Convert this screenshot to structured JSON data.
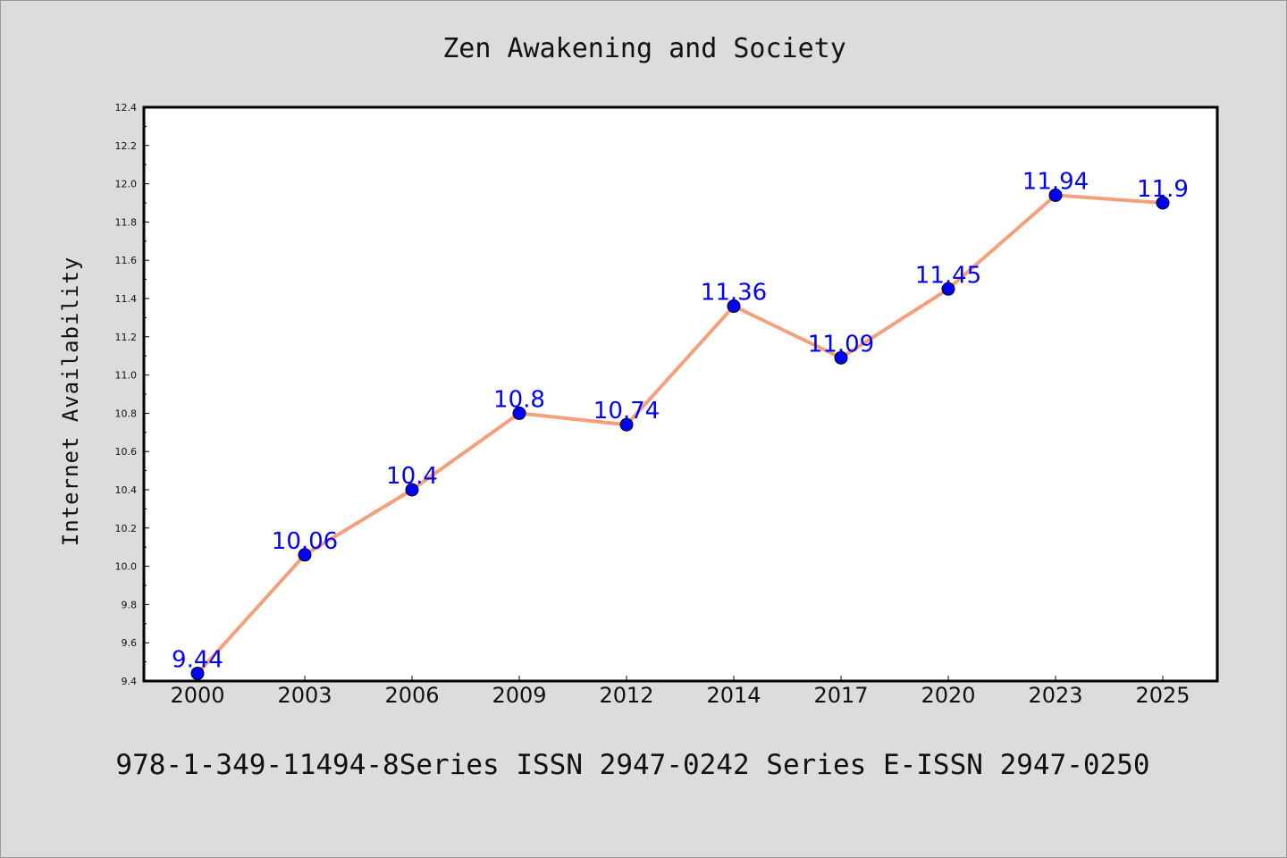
{
  "chart_data": {
    "type": "line",
    "title": "Zen Awakening and Society",
    "xlabel": "",
    "ylabel": "Internet Availability",
    "categories": [
      "2000",
      "2003",
      "2006",
      "2009",
      "2012",
      "2014",
      "2017",
      "2020",
      "2023",
      "2025"
    ],
    "series": [
      {
        "values": [
          9.44,
          10.06,
          10.4,
          10.8,
          10.74,
          11.36,
          11.09,
          11.45,
          11.94,
          11.9
        ],
        "data_labels": [
          "9.44",
          "10.06",
          "10.4",
          "10.8",
          "10.74",
          "11.36",
          "11.09",
          "11.45",
          "11.94",
          "11.9"
        ],
        "line_color": "#f4a07a",
        "marker_color": "#0000ff"
      }
    ],
    "ylim": [
      9.4,
      12.4
    ],
    "yticks": [
      "9.4",
      "9.6",
      "9.8",
      "10.0",
      "10.2",
      "10.4",
      "10.6",
      "10.8",
      "11.0",
      "11.2",
      "11.4",
      "11.6",
      "11.8",
      "12.0",
      "12.2",
      "12.4"
    ],
    "grid": false,
    "legend": "none"
  },
  "footer": {
    "text": "978-1-349-11494-8Series ISSN 2947-0242 Series E-ISSN 2947-0250"
  },
  "colors": {
    "background": "#dcdcdc",
    "plot_background": "#ffffff",
    "line": "#f4a07a",
    "marker": "#0000ff",
    "data_label": "#0000ff"
  }
}
